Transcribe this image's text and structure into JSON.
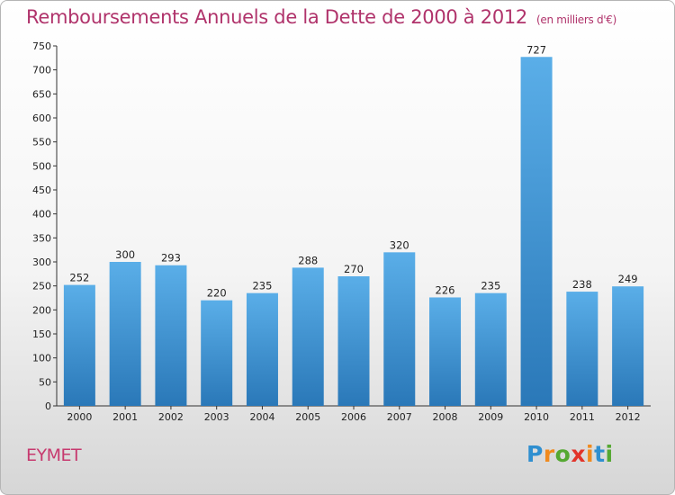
{
  "header": {
    "title": "Remboursements Annuels de la Dette de 2000 à 2012",
    "unit": "(en milliers d'€)"
  },
  "footer": {
    "town": "EYMET",
    "logo_letters": [
      "P",
      "r",
      "o",
      "x",
      "i",
      "t",
      "i"
    ],
    "logo_colors": [
      "#2f8fd0",
      "#f08a1e",
      "#55a832",
      "#e2342a",
      "#f08a1e",
      "#2f8fd0",
      "#55a832"
    ]
  },
  "chart_data": {
    "type": "bar",
    "title": "Remboursements Annuels de la Dette de 2000 à 2012",
    "subtitle": "(en milliers d'€)",
    "xlabel": "",
    "ylabel": "",
    "categories": [
      "2000",
      "2001",
      "2002",
      "2003",
      "2004",
      "2005",
      "2006",
      "2007",
      "2008",
      "2009",
      "2010",
      "2011",
      "2012"
    ],
    "values": [
      252,
      300,
      293,
      220,
      235,
      288,
      270,
      320,
      226,
      235,
      727,
      238,
      249
    ],
    "ylim": [
      0,
      750
    ],
    "yticks": [
      0,
      50,
      100,
      150,
      200,
      250,
      300,
      350,
      400,
      450,
      500,
      550,
      600,
      650,
      700,
      750
    ],
    "grid": false,
    "bar_color_top": "#5aaee8",
    "bar_color_bottom": "#2a78b8"
  }
}
